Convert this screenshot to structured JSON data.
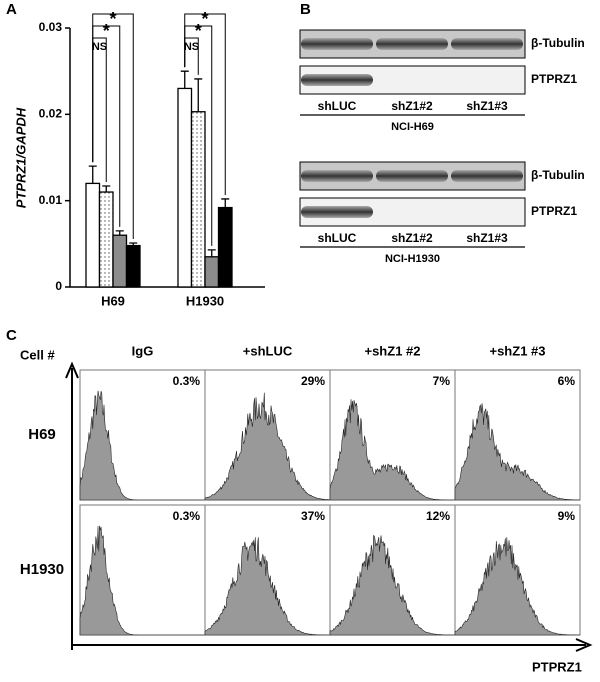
{
  "panels": [
    "A",
    "B",
    "C"
  ],
  "chart_data": {
    "type": "bar",
    "y_label": "PTPRZ1/GAPDH",
    "categories": [
      "H69",
      "H1930"
    ],
    "series": [
      {
        "color": "#ffffff",
        "values": [
          0.012,
          0.023
        ],
        "errors": [
          0.002,
          0.002
        ]
      },
      {
        "color": "dotted",
        "values": [
          0.011,
          0.0203
        ],
        "errors": [
          0.0007,
          0.0038
        ]
      },
      {
        "color": "#8c8c8c",
        "values": [
          0.006,
          0.0035
        ],
        "errors": [
          0.0005,
          0.0008
        ]
      },
      {
        "color": "#000000",
        "values": [
          0.0048,
          0.0092
        ],
        "errors": [
          0.0003,
          0.001
        ]
      }
    ],
    "ylim": [
      0,
      0.03
    ],
    "yticks": [
      0,
      0.01,
      0.02,
      0.03
    ],
    "annotations": [
      "*",
      "*",
      "NS",
      "*",
      "*",
      "NS"
    ]
  },
  "blots": [
    {
      "rows": [
        "β-Tubulin",
        "PTPRZ1"
      ],
      "lanes": [
        "shLUC",
        "shZ1#2",
        "shZ1#3"
      ],
      "cell_line": "NCI-H69"
    },
    {
      "rows": [
        "β-Tubulin",
        "PTPRZ1"
      ],
      "lanes": [
        "shLUC",
        "shZ1#2",
        "shZ1#3"
      ],
      "cell_line": "NCI-H1930"
    }
  ],
  "flow": {
    "y_label": "Cell #",
    "x_label": "PTPRZ1",
    "columns": [
      "IgG",
      "+shLUC",
      "+shZ1 #2",
      "+shZ1 #3"
    ],
    "rows": [
      {
        "name": "H69",
        "values": [
          0.3,
          29,
          7,
          6
        ],
        "value_labels": [
          "0.3%",
          "29%",
          "7%",
          "6%"
        ]
      },
      {
        "name": "H1930",
        "values": [
          0.3,
          37,
          12,
          9
        ],
        "value_labels": [
          "0.3%",
          "37%",
          "12%",
          "9%"
        ]
      }
    ]
  }
}
